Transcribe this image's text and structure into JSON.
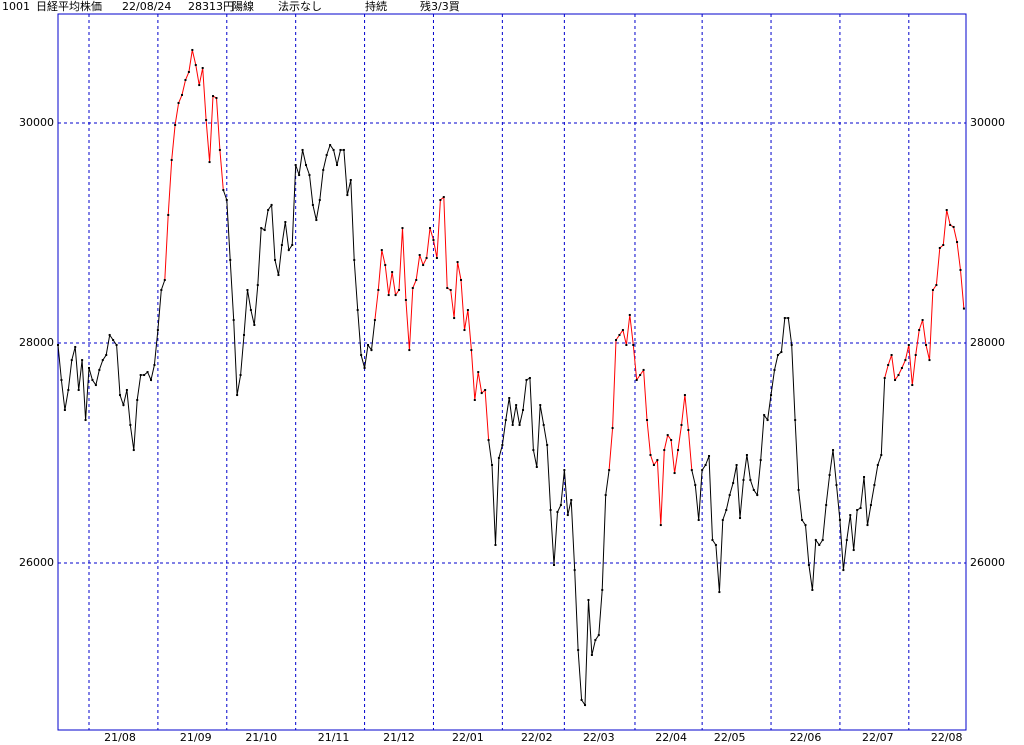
{
  "chart_data": {
    "type": "line",
    "header": [
      "1001",
      "日経平均株価",
      "22/08/24",
      "28313円",
      "陽線",
      "法示なし",
      "持続",
      "残3/3買"
    ],
    "values": [
      27982,
      27664,
      27391,
      27573,
      27845,
      27964,
      27573,
      27845,
      27300,
      27773,
      27664,
      27618,
      27755,
      27845,
      27891,
      28073,
      28027,
      27982,
      27527,
      27436,
      27573,
      27255,
      27027,
      27482,
      27709,
      27709,
      27736,
      27664,
      27800,
      28118,
      28482,
      28573,
      29164,
      29664,
      29982,
      30182,
      30255,
      30391,
      30464,
      30664,
      30527,
      30345,
      30500,
      30027,
      29645,
      30245,
      30227,
      29755,
      29391,
      29300,
      28755,
      28209,
      27527,
      27709,
      28073,
      28482,
      28300,
      28164,
      28527,
      29045,
      29027,
      29209,
      29255,
      28755,
      28618,
      28891,
      29100,
      28845,
      28891,
      29618,
      29527,
      29755,
      29618,
      29527,
      29255,
      29118,
      29300,
      29573,
      29709,
      29800,
      29755,
      29618,
      29755,
      29755,
      29345,
      29482,
      28755,
      28300,
      27891,
      27773,
      27982,
      27936,
      28209,
      28482,
      28845,
      28709,
      28436,
      28645,
      28436,
      28482,
      29045,
      28391,
      27936,
      28500,
      28573,
      28800,
      28709,
      28773,
      29045,
      28936,
      28773,
      29300,
      29327,
      28500,
      28482,
      28227,
      28736,
      28573,
      28118,
      28300,
      27936,
      27482,
      27736,
      27545,
      27573,
      27118,
      26891,
      26164,
      26955,
      27073,
      27300,
      27500,
      27255,
      27436,
      27255,
      27391,
      27664,
      27682,
      27027,
      26873,
      27436,
      27255,
      27073,
      26482,
      25982,
      26464,
      26527,
      26845,
      26436,
      26573,
      25936,
      25209,
      24755,
      24709,
      25664,
      25164,
      25300,
      25345,
      25755,
      26618,
      26845,
      27227,
      28027,
      28073,
      28118,
      27982,
      28255,
      27982,
      27664,
      27709,
      27755,
      27300,
      26982,
      26891,
      26936,
      26345,
      27027,
      27163,
      27118,
      26818,
      27027,
      27255,
      27527,
      27209,
      26845,
      26709,
      26391,
      26845,
      26891,
      26973,
      26209,
      26164,
      25736,
      26391,
      26482,
      26618,
      26727,
      26891,
      26409,
      26755,
      26982,
      26755,
      26664,
      26618,
      26936,
      27345,
      27300,
      27527,
      27755,
      27891,
      27918,
      28227,
      28227,
      27982,
      27300,
      26664,
      26391,
      26345,
      25982,
      25755,
      26209,
      26164,
      26209,
      26527,
      26800,
      27027,
      26709,
      26391,
      25936,
      26209,
      26436,
      26118,
      26482,
      26500,
      26782,
      26345,
      26527,
      26709,
      26891,
      26982,
      27682,
      27800,
      27891,
      27664,
      27709,
      27773,
      27845,
      27982,
      27618,
      27891,
      28118,
      28209,
      27982,
      27845,
      28482,
      28527,
      28864,
      28891,
      29209,
      29073,
      29055,
      28918,
      28664,
      28313
    ],
    "colors": [
      "black",
      "black",
      "black",
      "black",
      "black",
      "black",
      "black",
      "black",
      "black",
      "black",
      "black",
      "black",
      "black",
      "black",
      "black",
      "black",
      "black",
      "black",
      "black",
      "black",
      "black",
      "black",
      "black",
      "black",
      "black",
      "black",
      "black",
      "black",
      "black",
      "black",
      "black",
      "black",
      "red",
      "red",
      "red",
      "red",
      "red",
      "red",
      "red",
      "red",
      "red",
      "red",
      "red",
      "red",
      "red",
      "red",
      "red",
      "red",
      "red",
      "black",
      "black",
      "black",
      "black",
      "black",
      "black",
      "black",
      "black",
      "black",
      "black",
      "black",
      "black",
      "black",
      "black",
      "black",
      "black",
      "black",
      "black",
      "black",
      "black",
      "black",
      "black",
      "black",
      "black",
      "black",
      "black",
      "black",
      "black",
      "black",
      "black",
      "black",
      "black",
      "black",
      "black",
      "black",
      "black",
      "black",
      "black",
      "black",
      "black",
      "black",
      "black",
      "black",
      "black",
      "red",
      "red",
      "red",
      "red",
      "red",
      "red",
      "red",
      "red",
      "red",
      "red",
      "red",
      "red",
      "red",
      "red",
      "red",
      "red",
      "red",
      "red",
      "red",
      "red",
      "red",
      "red",
      "red",
      "red",
      "red",
      "red",
      "red",
      "red",
      "red",
      "red",
      "red",
      "red",
      "red",
      "black",
      "black",
      "black",
      "black",
      "black",
      "black",
      "black",
      "black",
      "black",
      "black",
      "black",
      "black",
      "black",
      "black",
      "black",
      "black",
      "black",
      "black",
      "black",
      "black",
      "black",
      "black",
      "black",
      "black",
      "black",
      "black",
      "black",
      "black",
      "black",
      "black",
      "black",
      "black",
      "black",
      "black",
      "black",
      "red",
      "red",
      "red",
      "red",
      "red",
      "red",
      "red",
      "red",
      "red",
      "red",
      "red",
      "red",
      "red",
      "red",
      "red",
      "red",
      "red",
      "red",
      "red",
      "red",
      "red",
      "red",
      "red",
      "red",
      "black",
      "black",
      "black",
      "black",
      "black",
      "black",
      "black",
      "black",
      "black",
      "black",
      "black",
      "black",
      "black",
      "black",
      "black",
      "black",
      "black",
      "black",
      "black",
      "black",
      "black",
      "black",
      "black",
      "black",
      "black",
      "black",
      "black",
      "black",
      "black",
      "black",
      "black",
      "black",
      "black",
      "black",
      "black",
      "black",
      "black",
      "black",
      "black",
      "black",
      "black",
      "black",
      "black",
      "black",
      "black",
      "black",
      "black",
      "black",
      "black",
      "black",
      "black",
      "black",
      "black",
      "black",
      "black",
      "black",
      "red",
      "red",
      "red",
      "red",
      "red",
      "red",
      "red",
      "red",
      "red",
      "red",
      "red",
      "red",
      "red",
      "red",
      "red",
      "red",
      "red",
      "red",
      "red",
      "red",
      "red",
      "red",
      "red"
    ],
    "dot_color": "black",
    "frame_color": "#0000cc",
    "xlim": [
      0,
      263.6
    ],
    "xticks": [
      {
        "value": 18,
        "label": "21/08"
      },
      {
        "value": 40,
        "label": "21/09"
      },
      {
        "value": 59,
        "label": "21/10"
      },
      {
        "value": 80,
        "label": "21/11"
      },
      {
        "value": 99,
        "label": "21/12"
      },
      {
        "value": 119,
        "label": "22/01"
      },
      {
        "value": 139,
        "label": "22/02"
      },
      {
        "value": 157,
        "label": "22/03"
      },
      {
        "value": 178,
        "label": "22/04"
      },
      {
        "value": 195,
        "label": "22/05"
      },
      {
        "value": 217,
        "label": "22/06"
      },
      {
        "value": 238,
        "label": "22/07"
      },
      {
        "value": 258,
        "label": "22/08"
      }
    ],
    "xgrid": [
      9,
      29,
      49,
      69,
      89,
      109,
      129,
      147,
      167.5,
      187,
      207,
      227,
      247
    ],
    "ylim": [
      24482,
      30991
    ],
    "yticks": [
      26000,
      28000,
      30000
    ],
    "grid": true
  }
}
